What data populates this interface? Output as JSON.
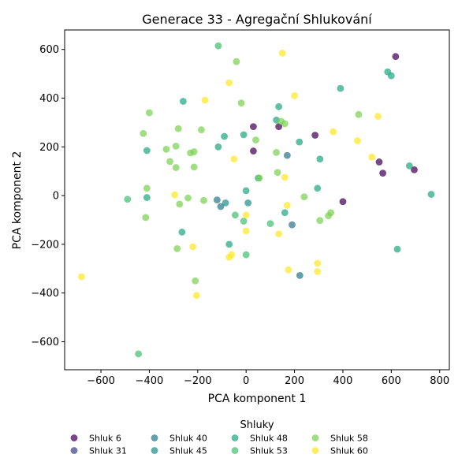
{
  "chart_data": {
    "type": "scatter",
    "title": "Generace 33 - Agregační Shlukování",
    "xlabel": "PCA komponent 1",
    "ylabel": "PCA komponent 2",
    "xlim": [
      -750,
      840
    ],
    "ylim": [
      -715,
      680
    ],
    "xticks": [
      -600,
      -400,
      -200,
      0,
      200,
      400,
      600,
      800
    ],
    "yticks": [
      -600,
      -400,
      -200,
      0,
      200,
      400,
      600
    ],
    "grid": false,
    "legend": {
      "title": "Shluky",
      "placement": "bottom-center",
      "columns": 5
    },
    "series": [
      {
        "name": "Shluk 6",
        "color": "#440154",
        "points": [
          [
            618,
            571
          ],
          [
            30,
            283
          ],
          [
            135,
            283
          ],
          [
            285,
            248
          ],
          [
            30,
            183
          ],
          [
            550,
            138
          ],
          [
            565,
            92
          ],
          [
            695,
            106
          ],
          [
            400,
            -25
          ]
        ]
      },
      {
        "name": "Shluk 31",
        "color": "#404387",
        "points": []
      },
      {
        "name": "Shluk 40",
        "color": "#2a788e",
        "points": [
          [
            -120,
            -18
          ],
          [
            -105,
            -45
          ],
          [
            170,
            165
          ],
          [
            190,
            -120
          ],
          [
            222,
            -328
          ]
        ]
      },
      {
        "name": "Shluk 45",
        "color": "#21918c",
        "points": [
          [
            8,
            -30
          ],
          [
            -85,
            -30
          ]
        ]
      },
      {
        "name": "Shluk 48",
        "color": "#22a884",
        "points": [
          [
            -260,
            387
          ],
          [
            135,
            365
          ],
          [
            390,
            440
          ],
          [
            585,
            508
          ],
          [
            600,
            492
          ],
          [
            125,
            310
          ],
          [
            220,
            220
          ],
          [
            -410,
            185
          ],
          [
            -115,
            200
          ],
          [
            -10,
            250
          ],
          [
            -90,
            243
          ],
          [
            305,
            150
          ],
          [
            675,
            122
          ],
          [
            765,
            5
          ],
          [
            -410,
            -8
          ],
          [
            295,
            30
          ],
          [
            0,
            20
          ],
          [
            50,
            72
          ],
          [
            160,
            -70
          ],
          [
            -265,
            -150
          ],
          [
            -70,
            -200
          ],
          [
            625,
            -220
          ]
        ]
      },
      {
        "name": "Shluk 53",
        "color": "#44bf70",
        "points": [
          [
            -115,
            615
          ],
          [
            -490,
            -15
          ],
          [
            100,
            -115
          ],
          [
            -45,
            -80
          ],
          [
            -10,
            -105
          ],
          [
            0,
            -243
          ],
          [
            -445,
            -650
          ]
        ]
      },
      {
        "name": "Shluk 58",
        "color": "#7ad151",
        "points": [
          [
            -40,
            550
          ],
          [
            -400,
            340
          ],
          [
            465,
            333
          ],
          [
            -20,
            380
          ],
          [
            145,
            305
          ],
          [
            160,
            295
          ],
          [
            -425,
            255
          ],
          [
            -280,
            275
          ],
          [
            -185,
            270
          ],
          [
            40,
            228
          ],
          [
            -290,
            203
          ],
          [
            -330,
            190
          ],
          [
            -230,
            175
          ],
          [
            -215,
            180
          ],
          [
            125,
            177
          ],
          [
            -315,
            140
          ],
          [
            -215,
            117
          ],
          [
            -290,
            115
          ],
          [
            130,
            95
          ],
          [
            55,
            72
          ],
          [
            -410,
            30
          ],
          [
            -240,
            -10
          ],
          [
            240,
            -5
          ],
          [
            -175,
            -20
          ],
          [
            -275,
            -35
          ],
          [
            350,
            -70
          ],
          [
            340,
            -83
          ],
          [
            305,
            -102
          ],
          [
            -415,
            -90
          ],
          [
            -285,
            -218
          ],
          [
            -210,
            -350
          ]
        ]
      },
      {
        "name": "Shluk 60",
        "color": "#fde725",
        "points": [
          [
            150,
            585
          ],
          [
            -70,
            463
          ],
          [
            200,
            410
          ],
          [
            -170,
            392
          ],
          [
            545,
            325
          ],
          [
            360,
            262
          ],
          [
            460,
            225
          ],
          [
            520,
            158
          ],
          [
            -50,
            150
          ],
          [
            160,
            75
          ],
          [
            -295,
            3
          ],
          [
            0,
            -80
          ],
          [
            170,
            -40
          ],
          [
            0,
            -145
          ],
          [
            135,
            -157
          ],
          [
            -220,
            -210
          ],
          [
            -60,
            -243
          ],
          [
            -70,
            -253
          ],
          [
            295,
            -278
          ],
          [
            175,
            -305
          ],
          [
            295,
            -312
          ],
          [
            -680,
            -333
          ],
          [
            -205,
            -410
          ]
        ]
      }
    ]
  }
}
